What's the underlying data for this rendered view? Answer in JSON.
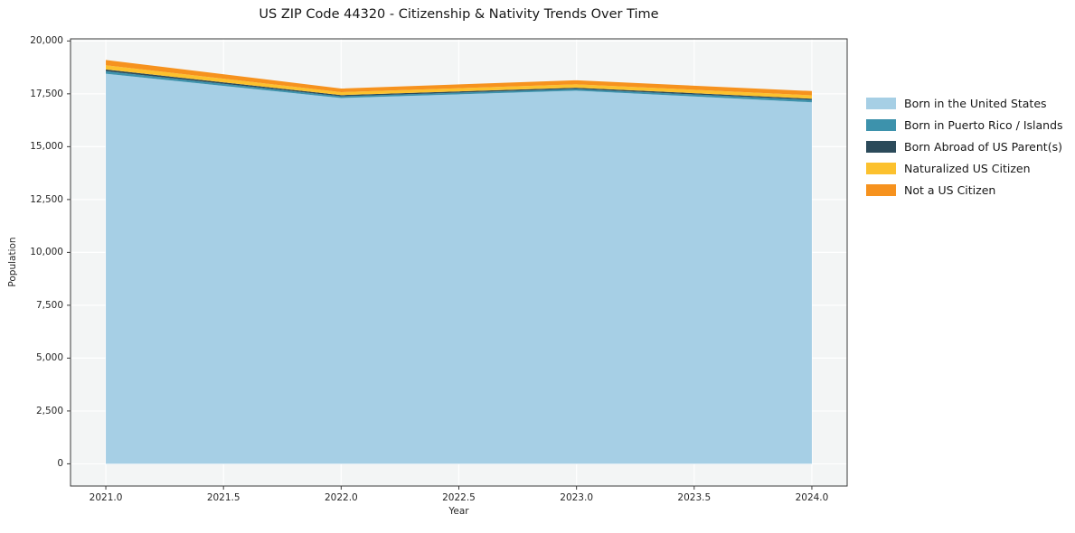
{
  "chart_data": {
    "type": "area",
    "stacked": true,
    "title": "US ZIP Code 44320 - Citizenship & Nativity Trends Over Time",
    "xlabel": "Year",
    "ylabel": "Population",
    "x": [
      2021,
      2022,
      2023,
      2024
    ],
    "xlim": [
      2020.85,
      2024.15
    ],
    "ylim": [
      0,
      20000
    ],
    "x_ticks": [
      "2021.0",
      "2021.5",
      "2022.0",
      "2022.5",
      "2023.0",
      "2023.5",
      "2024.0"
    ],
    "y_ticks": [
      "0",
      "2,500",
      "5,000",
      "7,500",
      "10,000",
      "12,500",
      "15,000",
      "17,500",
      "20,000"
    ],
    "grid": true,
    "legend_position": "right",
    "plot_bg": "#f3f5f5",
    "grid_color": "#ffffff",
    "spine_color": "#3a3a3a",
    "series": [
      {
        "name": "Born in the United States",
        "color": "#a6cfe5",
        "values": [
          18450,
          17300,
          17650,
          17100
        ]
      },
      {
        "name": "Born in Puerto Rico / Islands",
        "color": "#3d92ac",
        "values": [
          120,
          80,
          80,
          110
        ]
      },
      {
        "name": "Born Abroad of US Parent(s)",
        "color": "#2b4a5a",
        "values": [
          80,
          60,
          60,
          60
        ]
      },
      {
        "name": "Naturalized US Citizen",
        "color": "#fcc12e",
        "values": [
          200,
          140,
          160,
          160
        ]
      },
      {
        "name": "Not a US Citizen",
        "color": "#f6921e",
        "values": [
          250,
          170,
          190,
          200
        ]
      }
    ]
  }
}
